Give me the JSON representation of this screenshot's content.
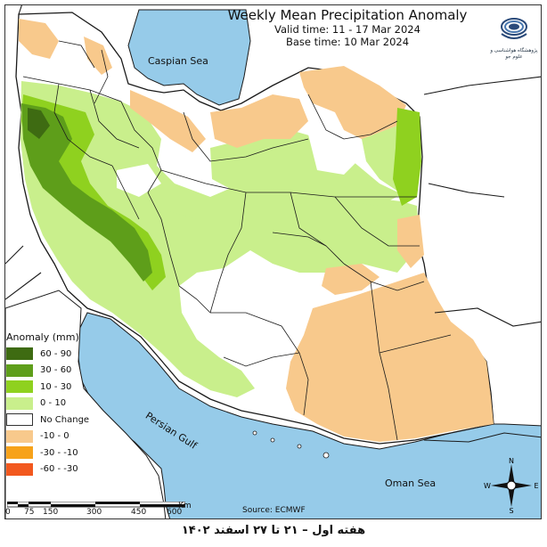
{
  "title": "Weekly Mean Precipitation Anomaly",
  "valid_time": "Valid time: 11 - 17 Mar 2024",
  "base_time": "Base time: 10 Mar 2024",
  "logo_text": "پژوهشگاه هواشناسی و علوم جو",
  "seas": {
    "caspian": "Caspian Sea",
    "persian_gulf": "Persian Gulf",
    "oman": "Oman Sea"
  },
  "legend": {
    "title": "Anomaly (mm)",
    "items": [
      {
        "label": "60 - 90",
        "color": "#3e6b12"
      },
      {
        "label": "30 - 60",
        "color": "#5e9e1a"
      },
      {
        "label": "10 - 30",
        "color": "#8fd11f"
      },
      {
        "label": "0 - 10",
        "color": "#c9ef8c"
      },
      {
        "label": "No Change",
        "color": "#ffffff"
      },
      {
        "label": "-10 - 0",
        "color": "#f8c98c"
      },
      {
        "label": "-30 - -10",
        "color": "#f7a21a"
      },
      {
        "label": "-60 - -30",
        "color": "#f2581e"
      }
    ]
  },
  "scale": {
    "ticks": [
      "0",
      "75",
      "150",
      "300",
      "450",
      "600"
    ],
    "unit": "Km"
  },
  "source": "Source: ECMWF",
  "compass": {
    "n": "N",
    "e": "E",
    "s": "S",
    "w": "W"
  },
  "footer": "هفته اول – ۲۱ تا ۲۷ اسفند ۱۴۰۲",
  "colors": {
    "sea": "#96cbe9",
    "land_outside": "#ffffff",
    "border": "#1a1a1a"
  }
}
